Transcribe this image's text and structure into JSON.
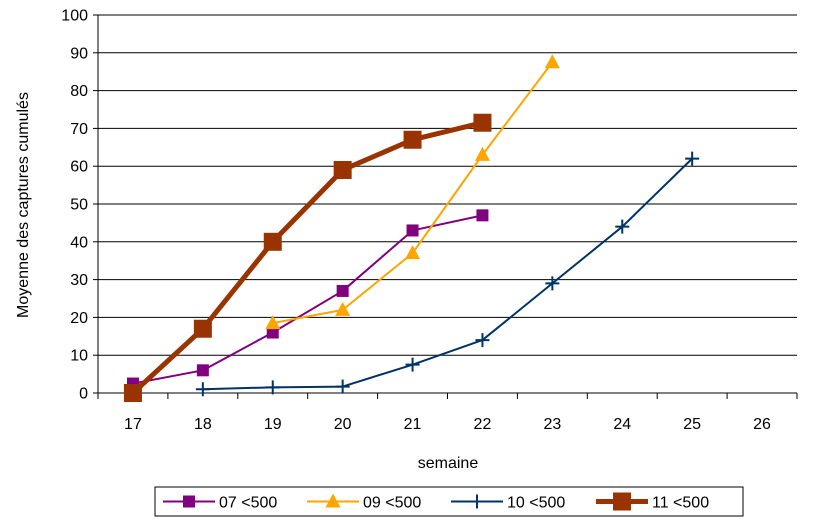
{
  "chart_data": {
    "type": "line",
    "title": "",
    "xlabel": "semaine",
    "ylabel": "Moyenne des captures cumulés",
    "categories": [
      "17",
      "18",
      "19",
      "20",
      "21",
      "22",
      "23",
      "24",
      "25",
      "26"
    ],
    "ylim": [
      0,
      100
    ],
    "yticks": [
      "0",
      "10",
      "20",
      "30",
      "40",
      "50",
      "60",
      "70",
      "80",
      "90",
      "100"
    ],
    "grid": "horizontal",
    "legend_position": "bottom",
    "series": [
      {
        "name": "07 <500",
        "color": "#800080",
        "marker": "square",
        "values": [
          2.5,
          6,
          16,
          27,
          43,
          47,
          null,
          null,
          null,
          null
        ]
      },
      {
        "name": "09 <500",
        "color": "#ffa500",
        "marker": "triangle",
        "values": [
          null,
          null,
          18.5,
          22,
          37,
          63,
          87.5,
          null,
          null,
          null
        ]
      },
      {
        "name": "10 <500",
        "color": "#003366",
        "marker": "plus",
        "values": [
          null,
          1,
          1.5,
          1.7,
          7.5,
          14,
          29,
          44,
          62,
          null
        ]
      },
      {
        "name": "11 <500",
        "color": "#993300",
        "marker": "square-large",
        "values": [
          0,
          17,
          40,
          59,
          67,
          71.5,
          null,
          null,
          null,
          null
        ]
      }
    ]
  }
}
